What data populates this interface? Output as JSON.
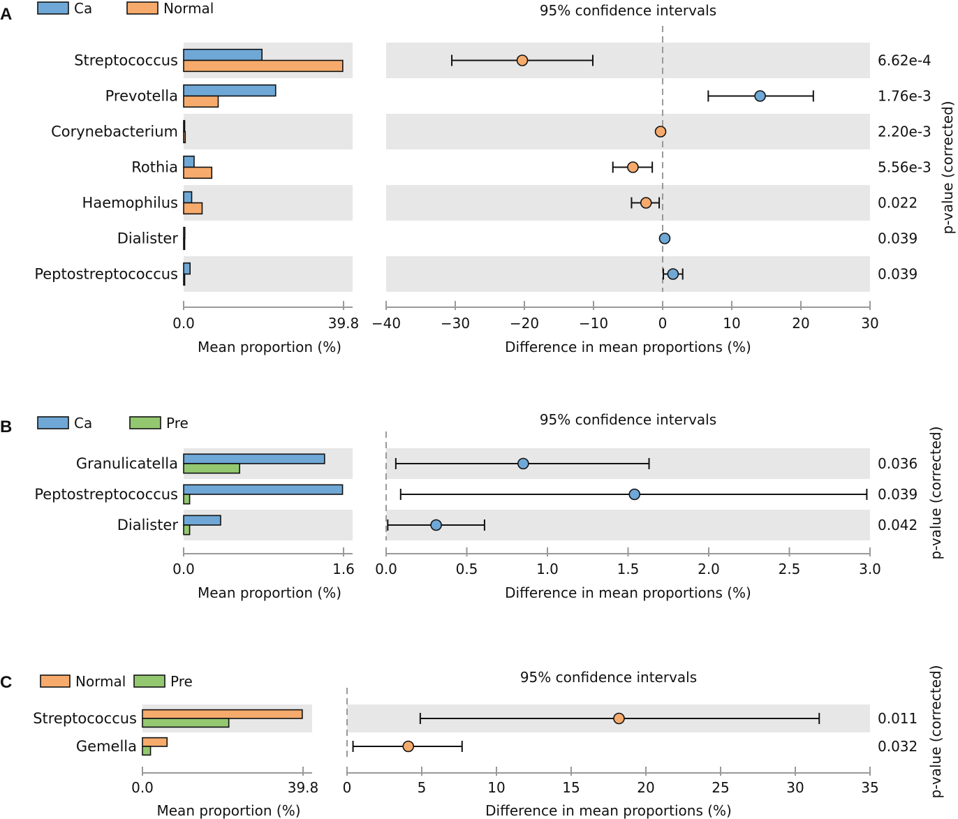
{
  "colors": {
    "Ca": "#6fa8d6",
    "Normal": "#f6ab6c",
    "Pre": "#93c870",
    "band": "#e7e7e7",
    "axis": "#999999",
    "zero_line": "#999999",
    "text": "#111111"
  },
  "chart_data": [
    {
      "panel": "A",
      "type": "extended-error-bar",
      "groups": [
        "Ca",
        "Normal"
      ],
      "ci_title": "95% confidence intervals",
      "bar_xlabel": "Mean proportion (%)",
      "ci_xlabel": "Difference in mean proportions (%)",
      "pvalue_label": "p-value (corrected)",
      "bar_xlim": [
        0,
        39.8
      ],
      "bar_ticks": [
        "0.0",
        "39.8"
      ],
      "ci_xlim": [
        -40,
        30
      ],
      "ci_ticks": [
        "−40",
        "−30",
        "−20",
        "−10",
        "0",
        "10",
        "20",
        "30"
      ],
      "ci_tick_values": [
        -40,
        -30,
        -20,
        -10,
        0,
        10,
        20,
        30
      ],
      "zero_line": true,
      "rows": [
        {
          "name": "Streptococcus",
          "means": [
            19.5,
            39.6
          ],
          "diff": -20.3,
          "ci": [
            -30.5,
            -10.1
          ],
          "p": "6.62e-4",
          "group": "Normal"
        },
        {
          "name": "Prevotella",
          "means": [
            22.9,
            8.6
          ],
          "diff": 14.1,
          "ci": [
            6.6,
            21.8
          ],
          "p": "1.76e-3",
          "group": "Ca"
        },
        {
          "name": "Corynebacterium",
          "means": [
            0.2,
            0.4
          ],
          "diff": -0.3,
          "ci": [
            -0.5,
            -0.1
          ],
          "p": "2.20e-3",
          "group": "Normal"
        },
        {
          "name": "Rothia",
          "means": [
            2.6,
            7.0
          ],
          "diff": -4.3,
          "ci": [
            -7.2,
            -1.5
          ],
          "p": "5.56e-3",
          "group": "Normal"
        },
        {
          "name": "Haemophilus",
          "means": [
            2.0,
            4.6
          ],
          "diff": -2.4,
          "ci": [
            -4.5,
            -0.5
          ],
          "p": "0.022",
          "group": "Normal"
        },
        {
          "name": "Dialister",
          "means": [
            0.3,
            0.1
          ],
          "diff": 0.3,
          "ci": [
            0.1,
            0.5
          ],
          "p": "0.039",
          "group": "Ca"
        },
        {
          "name": "Peptostreptococcus",
          "means": [
            1.6,
            0.1
          ],
          "diff": 1.5,
          "ci": [
            0.1,
            2.9
          ],
          "p": "0.039",
          "group": "Ca"
        }
      ]
    },
    {
      "panel": "B",
      "type": "extended-error-bar",
      "groups": [
        "Ca",
        "Pre"
      ],
      "ci_title": "95% confidence intervals",
      "bar_xlabel": "Mean proportion (%)",
      "ci_xlabel": "Difference in mean proportions (%)",
      "pvalue_label": "p-value (corrected)",
      "bar_xlim": [
        0,
        1.6
      ],
      "bar_ticks": [
        "0.0",
        "1.6"
      ],
      "ci_xlim": [
        0,
        3
      ],
      "ci_ticks": [
        "0.0",
        "0.5",
        "1.0",
        "1.5",
        "2.0",
        "2.5",
        "3.0"
      ],
      "ci_tick_values": [
        0,
        0.5,
        1,
        1.5,
        2,
        2.5,
        3
      ],
      "zero_line": true,
      "rows": [
        {
          "name": "Granulicatella",
          "means": [
            1.41,
            0.56
          ],
          "diff": 0.85,
          "ci": [
            0.06,
            1.63
          ],
          "p": "0.036",
          "group": "Ca"
        },
        {
          "name": "Peptostreptococcus",
          "means": [
            1.59,
            0.06
          ],
          "diff": 1.54,
          "ci": [
            0.09,
            2.98
          ],
          "p": "0.039",
          "group": "Ca"
        },
        {
          "name": "Dialister",
          "means": [
            0.37,
            0.06
          ],
          "diff": 0.31,
          "ci": [
            0.01,
            0.61
          ],
          "p": "0.042",
          "group": "Ca"
        }
      ]
    },
    {
      "panel": "C",
      "type": "extended-error-bar",
      "groups": [
        "Normal",
        "Pre"
      ],
      "ci_title": "95% confidence intervals",
      "bar_xlabel": "Mean proportion (%)",
      "ci_xlabel": "Difference in mean proportions (%)",
      "pvalue_label": "p-value (corrected)",
      "bar_xlim": [
        0,
        39.8
      ],
      "bar_ticks": [
        "0.0",
        "39.8"
      ],
      "ci_xlim": [
        0,
        35
      ],
      "ci_ticks": [
        "0",
        "5",
        "10",
        "15",
        "20",
        "25",
        "30",
        "35"
      ],
      "ci_tick_values": [
        0,
        5,
        10,
        15,
        20,
        25,
        30,
        35
      ],
      "zero_line": true,
      "rows": [
        {
          "name": "Streptococcus",
          "means": [
            39.6,
            21.4
          ],
          "diff": 18.2,
          "ci": [
            4.9,
            31.6
          ],
          "p": "0.011",
          "group": "Normal"
        },
        {
          "name": "Gemella",
          "means": [
            6.1,
            2.0
          ],
          "diff": 4.1,
          "ci": [
            0.4,
            7.7
          ],
          "p": "0.032",
          "group": "Normal"
        }
      ]
    }
  ]
}
